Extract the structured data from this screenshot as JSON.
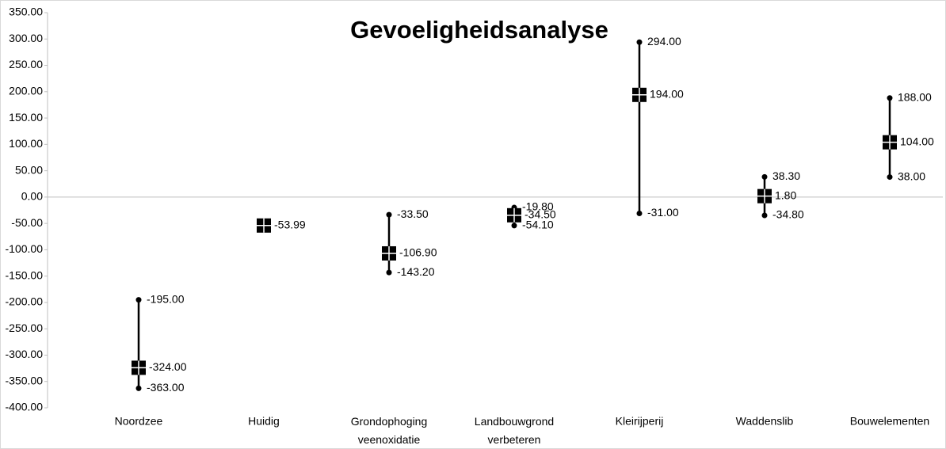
{
  "chart_data": {
    "type": "hilo",
    "title": "Gevoeligheidsanalyse",
    "categories": [
      "Noordzee",
      "Huidig",
      "Grondophoging veenoxidatie",
      "Landbouwgrond verbeteren",
      "Kleirijperij",
      "Waddenslib",
      "Bouwelementen"
    ],
    "high": [
      -195,
      null,
      -33.5,
      -19.8,
      294,
      38.3,
      188
    ],
    "high_labels": [
      "-195.00",
      null,
      "-33.50",
      "-19.80",
      "294.00",
      "38.30",
      "188.00"
    ],
    "values": [
      -324,
      -53.99,
      -106.9,
      -34.5,
      194,
      1.8,
      104
    ],
    "value_labels": [
      "-324.00",
      "-53.99",
      "-106.90",
      "-34.50",
      "194.00",
      "1.80",
      "104.00"
    ],
    "low": [
      -363,
      null,
      -143.2,
      -54.1,
      -31,
      -34.8,
      38
    ],
    "low_labels": [
      "-363.00",
      null,
      "-143.20",
      "-54.10",
      "-31.00",
      "-34.80",
      "38.00"
    ],
    "color": "#000000",
    "label_colors": {
      "positive": "#000000",
      "negative": "#ff0000"
    },
    "ylim": [
      -400,
      350
    ],
    "yticks": [
      {
        "value": -400,
        "label": "-400.00"
      },
      {
        "value": -350,
        "label": "-350.00"
      },
      {
        "value": -300,
        "label": "-300.00"
      },
      {
        "value": -250,
        "label": "-250.00"
      },
      {
        "value": -200,
        "label": "-200.00"
      },
      {
        "value": -150,
        "label": "-150.00"
      },
      {
        "value": -100,
        "label": "-100.00"
      },
      {
        "value": -50,
        "label": "-50.00"
      },
      {
        "value": 0,
        "label": "0.00"
      },
      {
        "value": 50,
        "label": "50.00"
      },
      {
        "value": 100,
        "label": "100.00"
      },
      {
        "value": 150,
        "label": "150.00"
      },
      {
        "value": 200,
        "label": "200.00"
      },
      {
        "value": 250,
        "label": "250.00"
      },
      {
        "value": 300,
        "label": "300.00"
      },
      {
        "value": 350,
        "label": "350.00"
      }
    ]
  }
}
